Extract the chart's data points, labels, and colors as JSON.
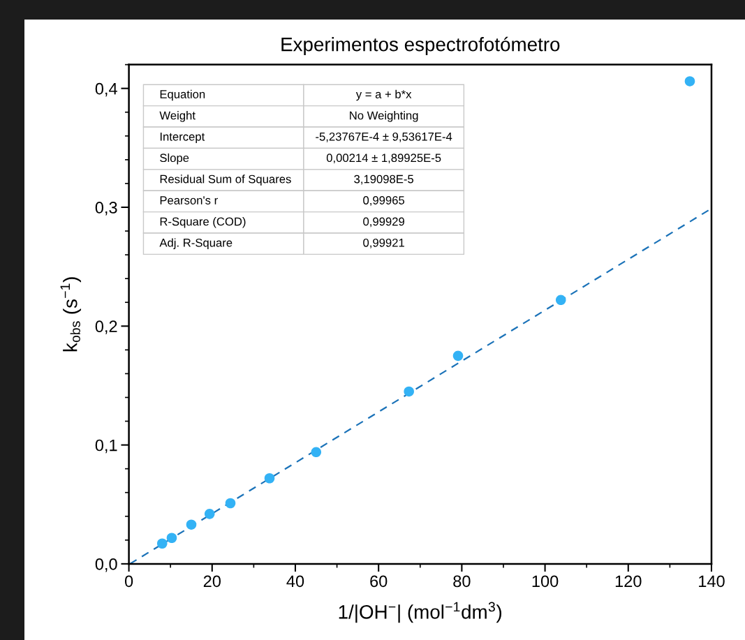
{
  "chart_data": {
    "type": "scatter",
    "title": "Experimentos espectrofotómetro",
    "xlabel": "1/|OH$^{−}$| (mol$^{−1}$dm$^{3}$)",
    "ylabel": "k$_{obs}$ (s$^{−1}$)",
    "series": [
      {
        "color": "#33b2f5",
        "marker": "circle",
        "x": [
          8.0,
          10.3,
          15.0,
          19.4,
          24.4,
          33.8,
          45.0,
          67.3,
          79.1,
          103.8,
          134.8
        ],
        "values": [
          0.0171,
          0.0218,
          0.033,
          0.042,
          0.051,
          0.072,
          0.094,
          0.145,
          0.175,
          0.222,
          0.406
        ]
      },
      {
        "type": "line",
        "color": "#1a72b8",
        "line_style": "dashed",
        "x": [
          0.25,
          140
        ],
        "values": [
          0,
          0.299
        ]
      }
    ],
    "xlim": [
      0,
      140
    ],
    "xticks": [
      0,
      20,
      40,
      60,
      80,
      100,
      120,
      140
    ],
    "ylim": [
      0,
      0.42
    ],
    "yticks": [
      {
        "value": 0,
        "label": "0,0"
      },
      {
        "value": 0.1,
        "label": "0,1"
      },
      {
        "value": 0.2,
        "label": "0,2"
      },
      {
        "value": 0.3,
        "label": "0,3"
      },
      {
        "value": 0.4,
        "label": "0,4"
      }
    ],
    "grid": false,
    "legend": false,
    "annotations": [
      "Equation",
      "y = a + b*x",
      "Weight",
      "No Weighting",
      "Intercept",
      "-5,23767E-4 ± 9,53617E-4",
      "Slope",
      "0,00214 ± 1,89925E-5",
      "Residual Sum of Squares",
      "3,19098E-5",
      "Pearson's r",
      "0,99965",
      "R-Square (COD)",
      "0,99929",
      "Adj. R-Square",
      "0,99921"
    ]
  }
}
